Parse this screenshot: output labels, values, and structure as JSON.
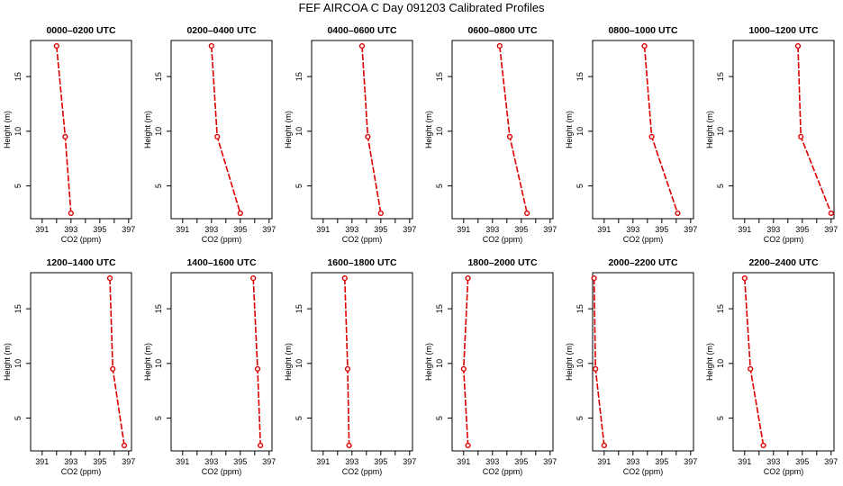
{
  "title": "FEF  AIRCOA C  Day 091203  Calibrated Profiles",
  "colors": {
    "profile": "#dd0000",
    "axis": "#000000"
  },
  "chart_data": {
    "type": "line",
    "xlabel": "CO2 (ppm)",
    "ylabel": "Height (m)",
    "xlim": [
      390.2,
      397.2
    ],
    "ylim": [
      2.0,
      18.3
    ],
    "xticks": [
      391,
      392,
      393,
      394,
      395,
      396,
      397
    ],
    "xtick_labels": [
      "391",
      "",
      "393",
      "",
      "395",
      "",
      "397"
    ],
    "yticks": [
      5,
      10,
      15
    ],
    "heights": [
      17.8,
      9.5,
      2.5
    ],
    "panels": [
      {
        "title": "0000–0200 UTC",
        "co2": [
          392.0,
          392.6,
          393.0
        ]
      },
      {
        "title": "0200–0400 UTC",
        "co2": [
          393.0,
          393.4,
          395.0
        ]
      },
      {
        "title": "0400–0600 UTC",
        "co2": [
          393.7,
          394.1,
          395.0
        ]
      },
      {
        "title": "0600–0800 UTC",
        "co2": [
          393.5,
          394.2,
          395.4
        ]
      },
      {
        "title": "0800–1000 UTC",
        "co2": [
          393.8,
          394.3,
          396.1
        ]
      },
      {
        "title": "1000–1200 UTC",
        "co2": [
          394.7,
          394.9,
          397.0
        ]
      },
      {
        "title": "1200–1400 UTC",
        "co2": [
          395.7,
          395.9,
          396.7
        ]
      },
      {
        "title": "1400–1600 UTC",
        "co2": [
          395.9,
          396.2,
          396.4
        ]
      },
      {
        "title": "1600–1800 UTC",
        "co2": [
          392.5,
          392.7,
          392.8
        ]
      },
      {
        "title": "1800–2000 UTC",
        "co2": [
          391.3,
          391.0,
          391.3
        ]
      },
      {
        "title": "2000–2200 UTC",
        "co2": [
          390.3,
          390.4,
          391.0
        ]
      },
      {
        "title": "2200–2400 UTC",
        "co2": [
          391.0,
          391.4,
          392.3
        ]
      }
    ]
  }
}
